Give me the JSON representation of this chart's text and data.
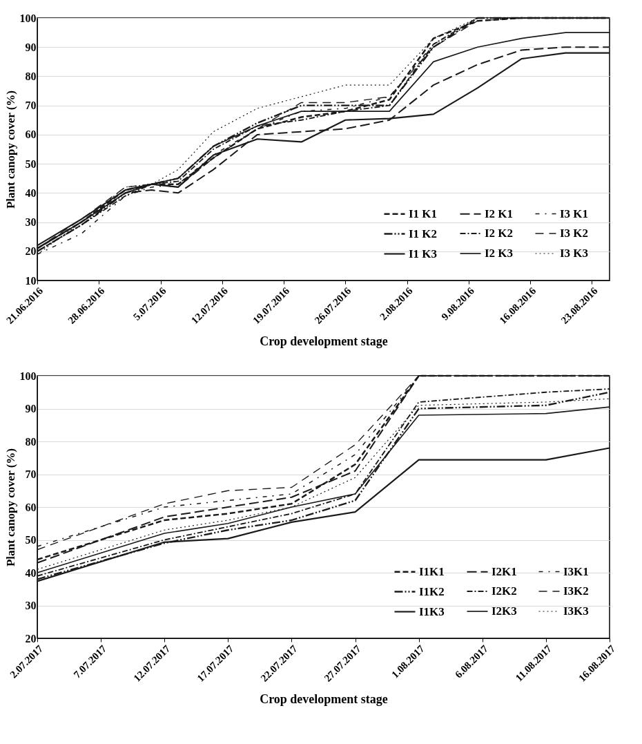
{
  "chart_data": [
    {
      "type": "line",
      "xlabel": "Crop development stage",
      "ylabel": "Plant canopy cover (%)",
      "x": [
        "2016-06-21",
        "2016-06-26",
        "2016-07-01",
        "2016-07-04",
        "2016-07-07",
        "2016-07-11",
        "2016-07-16",
        "2016-07-21",
        "2016-07-26",
        "2016-07-31",
        "2016-08-05",
        "2016-08-10",
        "2016-08-15",
        "2016-08-20",
        "2016-08-25"
      ],
      "series": [
        {
          "name": "I1 K1",
          "color": "#1a1a1a",
          "line_style": "dashed",
          "values": [
            21,
            30,
            41,
            43,
            43,
            52,
            62,
            66,
            68,
            72,
            93,
            99,
            100,
            100,
            100
          ]
        },
        {
          "name": "I1 K2",
          "color": "#1a1a1a",
          "line_style": "dashed",
          "values": [
            20,
            29,
            40,
            43,
            45,
            56,
            64,
            70,
            70,
            70,
            90,
            100,
            100,
            100,
            100
          ]
        },
        {
          "name": "I1 K3",
          "color": "#1a1a1a",
          "line_style": "solid",
          "values": [
            22,
            31,
            41,
            43,
            42,
            53,
            58.5,
            57.5,
            65,
            65.5,
            67,
            76,
            86,
            88,
            88
          ]
        },
        {
          "name": "I2 K1",
          "color": "#1a1a1a",
          "line_style": "dashed",
          "values": [
            21,
            30,
            40,
            41,
            40,
            48,
            60,
            61,
            62,
            65,
            77,
            84,
            89,
            90,
            90
          ]
        },
        {
          "name": "I2 K2",
          "color": "#1a1a1a",
          "line_style": "dashed",
          "values": [
            20,
            29,
            39,
            43,
            44,
            55,
            63,
            65,
            68,
            70,
            91,
            100,
            100,
            100,
            100
          ]
        },
        {
          "name": "I2 K3",
          "color": "#1a1a1a",
          "line_style": "solid",
          "values": [
            21,
            30,
            40,
            43,
            45,
            56,
            63,
            68,
            68,
            68,
            85,
            90,
            93,
            95,
            95
          ]
        },
        {
          "name": "I3 K1",
          "color": "#1a1a1a",
          "line_style": "dashed",
          "values": [
            19,
            26,
            39,
            42,
            43,
            53,
            62,
            68,
            69,
            73,
            91,
            99,
            100,
            100,
            100
          ]
        },
        {
          "name": "I3 K2",
          "color": "#1a1a1a",
          "line_style": "dashed",
          "values": [
            21,
            31,
            42,
            43,
            42,
            52,
            62,
            71,
            71,
            73,
            90,
            99,
            100,
            100,
            100
          ]
        },
        {
          "name": "I3 K3",
          "color": "#1a1a1a",
          "line_style": "dotted",
          "values": [
            19,
            30,
            42,
            43,
            48,
            61,
            69,
            73,
            77,
            77,
            93,
            100,
            100,
            100,
            100
          ]
        }
      ],
      "xlim": [
        "2016-06-21",
        "2016-08-25"
      ],
      "xticks": [
        {
          "value": "2016-06-21",
          "label": "21.06.2016"
        },
        {
          "value": "2016-06-28",
          "label": "28.06.2016"
        },
        {
          "value": "2016-07-05",
          "label": "5.07.2016"
        },
        {
          "value": "2016-07-12",
          "label": "12.07.2016"
        },
        {
          "value": "2016-07-19",
          "label": "19.07.2016"
        },
        {
          "value": "2016-07-26",
          "label": "26.07.2016"
        },
        {
          "value": "2016-08-02",
          "label": "2.08.2016"
        },
        {
          "value": "2016-08-09",
          "label": "9.08.2016"
        },
        {
          "value": "2016-08-16",
          "label": "16.08.2016"
        },
        {
          "value": "2016-08-23",
          "label": "23.08.2016"
        }
      ],
      "ylim": [
        10,
        100
      ],
      "yticks": [
        10,
        20,
        30,
        40,
        50,
        60,
        70,
        80,
        90,
        100
      ],
      "grid": "y",
      "legend": "bottom right"
    },
    {
      "type": "line",
      "xlabel": "Crop development stage",
      "ylabel": "Plant canopy cover (%)",
      "x": [
        "2017-07-02",
        "2017-07-12",
        "2017-07-17",
        "2017-07-22",
        "2017-07-27",
        "2017-08-01",
        "2017-08-11",
        "2017-08-16"
      ],
      "series": [
        {
          "name": "I1K1",
          "color": "#1a1a1a",
          "line_style": "dashed",
          "values": [
            44,
            56,
            58,
            61,
            73,
            100,
            100,
            100
          ]
        },
        {
          "name": "I1K2",
          "color": "#1a1a1a",
          "line_style": "dashed",
          "values": [
            38,
            49,
            53,
            56,
            62,
            90,
            91,
            95
          ]
        },
        {
          "name": "I1K3",
          "color": "#1a1a1a",
          "line_style": "solid",
          "values": [
            37.4,
            49.3,
            50.4,
            55.4,
            58.5,
            74.4,
            74.4,
            78
          ]
        },
        {
          "name": "I2K1",
          "color": "#1a1a1a",
          "line_style": "dashed",
          "values": [
            43,
            57,
            60,
            63,
            71,
            100,
            100,
            100
          ]
        },
        {
          "name": "I2K2",
          "color": "#1a1a1a",
          "line_style": "dashed",
          "values": [
            39,
            50,
            54,
            58,
            64,
            92,
            95,
            96
          ]
        },
        {
          "name": "I2K3",
          "color": "#1a1a1a",
          "line_style": "solid",
          "values": [
            40,
            52,
            55,
            60,
            64,
            88,
            88.5,
            90.5
          ]
        },
        {
          "name": "I3K1",
          "color": "#1a1a1a",
          "line_style": "dashed",
          "values": [
            48,
            60,
            62,
            64,
            76,
            100,
            100,
            100
          ]
        },
        {
          "name": "I3K2",
          "color": "#1a1a1a",
          "line_style": "dashed",
          "values": [
            47,
            61,
            65,
            66,
            79,
            100,
            100,
            100
          ]
        },
        {
          "name": "I3K3",
          "color": "#1a1a1a",
          "line_style": "dotted",
          "values": [
            41,
            53,
            56,
            60,
            69,
            91,
            92,
            93
          ]
        }
      ],
      "xlim": [
        "2017-07-02",
        "2017-08-16"
      ],
      "xticks": [
        {
          "value": "2017-07-02",
          "label": "2.07.2017"
        },
        {
          "value": "2017-07-07",
          "label": "7.07.2017"
        },
        {
          "value": "2017-07-12",
          "label": "12.07.2017"
        },
        {
          "value": "2017-07-17",
          "label": "17.07.2017"
        },
        {
          "value": "2017-07-22",
          "label": "22.07.2017"
        },
        {
          "value": "2017-07-27",
          "label": "27.07.2017"
        },
        {
          "value": "2017-08-01",
          "label": "1.08.2017"
        },
        {
          "value": "2017-08-06",
          "label": "6.08.2017"
        },
        {
          "value": "2017-08-11",
          "label": "11.08.2017"
        },
        {
          "value": "2017-08-16",
          "label": "16.08.2017"
        }
      ],
      "ylim": [
        20,
        100
      ],
      "yticks": [
        20,
        30,
        40,
        50,
        60,
        70,
        80,
        90,
        100
      ],
      "grid": "y",
      "legend": "bottom right"
    }
  ]
}
